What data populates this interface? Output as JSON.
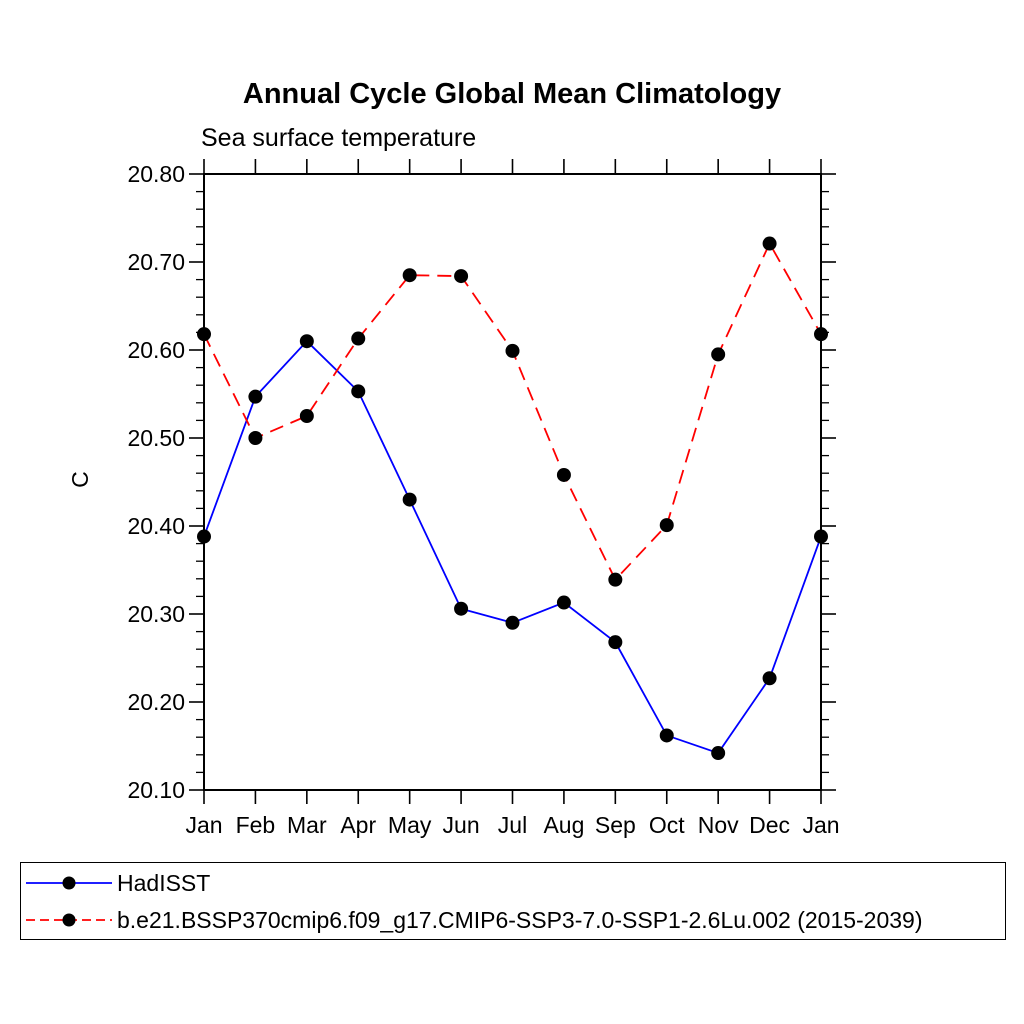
{
  "chart_data": {
    "type": "line",
    "title": "Annual Cycle Global Mean Climatology",
    "subtitle": "Sea surface temperature",
    "ylabel": "C",
    "xlabel": "",
    "categories": [
      "Jan",
      "Feb",
      "Mar",
      "Apr",
      "May",
      "Jun",
      "Jul",
      "Aug",
      "Sep",
      "Oct",
      "Nov",
      "Dec",
      "Jan"
    ],
    "ylim": [
      20.1,
      20.8
    ],
    "y_tick_labels": [
      "20.10",
      "20.20",
      "20.30",
      "20.40",
      "20.50",
      "20.60",
      "20.70",
      "20.80"
    ],
    "y_major_step": 0.1,
    "y_minor_step": 0.02,
    "grid": false,
    "legend_position": "bottom-box",
    "axis_color": "#000000",
    "marker": "filled-circle",
    "marker_color": "#000000",
    "series": [
      {
        "name": "HadISST",
        "color": "#0000ff",
        "line_style": "solid",
        "values": [
          20.388,
          20.547,
          20.61,
          20.553,
          20.43,
          20.306,
          20.29,
          20.313,
          20.268,
          20.162,
          20.142,
          20.227,
          20.388
        ]
      },
      {
        "name": "b.e21.BSSP370cmip6.f09_g17.CMIP6-SSP3-7.0-SSP1-2.6Lu.002 (2015-2039)",
        "color": "#ff0000",
        "line_style": "dashed",
        "values": [
          20.618,
          20.5,
          20.525,
          20.613,
          20.685,
          20.684,
          20.599,
          20.458,
          20.339,
          20.401,
          20.595,
          20.721,
          20.618
        ]
      }
    ]
  }
}
